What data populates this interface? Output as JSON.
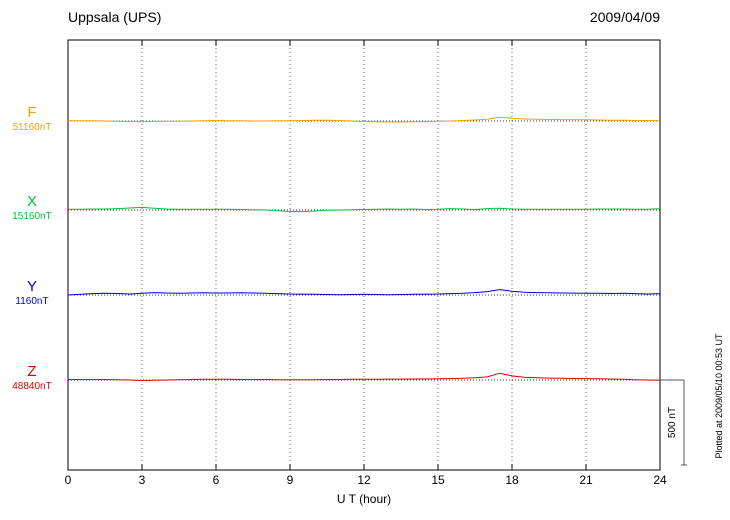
{
  "header": {
    "station": "Uppsala (UPS)",
    "date": "2009/04/09"
  },
  "footer": {
    "xlabel": "U T (hour)",
    "plotted_note": "Plotted at 2009/05/10 00:53 UT"
  },
  "scale_bar": {
    "label": "500 nT"
  },
  "chart_data": {
    "type": "line",
    "title": "Uppsala (UPS)",
    "date": "2009/04/09",
    "xlabel": "U T (hour)",
    "xlim": [
      0,
      24
    ],
    "x_ticks": [
      0,
      3,
      6,
      9,
      12,
      15,
      18,
      21,
      24
    ],
    "x_step_hours": 0.5,
    "grid": "vertical-dotted-every-3h",
    "scale_bar_nT": 500,
    "legend_position": "left-of-each-trace",
    "series": [
      {
        "name": "F",
        "baseline_label": "51160nT",
        "baseline_nT": 51160,
        "color": "#f0a000",
        "offsets_nT": [
          2,
          2,
          1,
          0,
          -2,
          -3,
          -4,
          -3,
          -2,
          -2,
          0,
          2,
          3,
          2,
          1,
          0,
          0,
          1,
          2,
          3,
          4,
          5,
          3,
          0,
          -3,
          -5,
          -6,
          -6,
          -5,
          -4,
          -2,
          0,
          3,
          6,
          10,
          22,
          16,
          12,
          10,
          9,
          8,
          8,
          7,
          6,
          5,
          4,
          3,
          3,
          2
        ]
      },
      {
        "name": "X",
        "baseline_label": "15160nT",
        "baseline_nT": 15160,
        "color": "#00c040",
        "offsets_nT": [
          5,
          5,
          6,
          6,
          8,
          12,
          15,
          10,
          6,
          5,
          4,
          4,
          4,
          4,
          3,
          2,
          0,
          -4,
          -8,
          -10,
          -6,
          -2,
          0,
          2,
          3,
          5,
          6,
          4,
          6,
          3,
          5,
          8,
          6,
          3,
          8,
          10,
          6,
          4,
          5,
          4,
          4,
          5,
          5,
          6,
          6,
          6,
          5,
          5,
          8
        ]
      },
      {
        "name": "Y",
        "baseline_label": "1160nT",
        "baseline_nT": 1160,
        "color": "#0000e0",
        "offsets_nT": [
          0,
          4,
          8,
          10,
          9,
          6,
          10,
          14,
          12,
          10,
          12,
          13,
          12,
          12,
          13,
          12,
          10,
          8,
          6,
          5,
          4,
          3,
          2,
          3,
          4,
          3,
          2,
          3,
          4,
          5,
          6,
          8,
          10,
          14,
          20,
          32,
          22,
          16,
          14,
          13,
          12,
          11,
          10,
          10,
          9,
          10,
          8,
          6,
          8
        ]
      },
      {
        "name": "Z",
        "baseline_label": "48840nT",
        "baseline_nT": 48840,
        "color": "#e00000",
        "offsets_nT": [
          3,
          3,
          3,
          3,
          2,
          0,
          -3,
          -2,
          0,
          2,
          3,
          4,
          4,
          4,
          3,
          3,
          3,
          2,
          2,
          2,
          2,
          3,
          3,
          4,
          4,
          4,
          5,
          5,
          6,
          6,
          7,
          8,
          10,
          13,
          18,
          40,
          24,
          16,
          13,
          11,
          10,
          9,
          8,
          7,
          6,
          4,
          2,
          0,
          -2
        ]
      }
    ]
  }
}
